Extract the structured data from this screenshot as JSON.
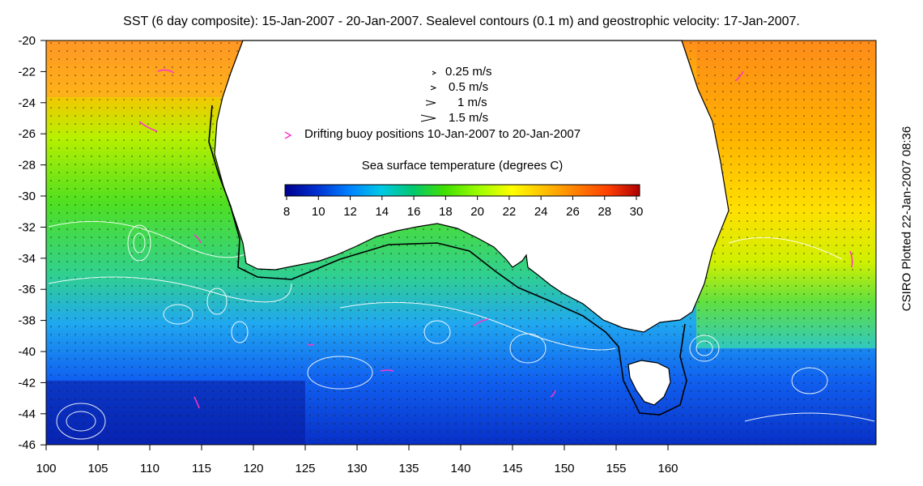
{
  "title": "SST (6 day composite): 15-Jan-2007 - 20-Jan-2007. Sealevel contours (0.1 m) and geostrophic velocity: 17-Jan-2007.",
  "credit": "CSIRO Plotted 22-Jan-2007 08:36",
  "axes": {
    "lon_ticks": [
      "100",
      "105",
      "110",
      "115",
      "120",
      "125",
      "130",
      "135",
      "140",
      "145",
      "150",
      "155",
      "160"
    ],
    "lat_ticks": [
      "-20",
      "-22",
      "-24",
      "-26",
      "-28",
      "-30",
      "-32",
      "-34",
      "-36",
      "-38",
      "-40",
      "-42",
      "-44",
      "-46"
    ]
  },
  "legend": {
    "velocity": [
      {
        "label": "0.25 m/s",
        "speed": 0.25
      },
      {
        "label": "0.5 m/s",
        "speed": 0.5
      },
      {
        "label": "1 m/s",
        "speed": 1
      },
      {
        "label": "1.5 m/s",
        "speed": 1.5
      }
    ],
    "drifter": {
      "label": "Drifting buoy positions 10-Jan-2007 to 20-Jan-2007",
      "color": "#ff33cc"
    }
  },
  "colorbar": {
    "label": "Sea surface temperature (degrees C)",
    "ticks": [
      "8",
      "10",
      "12",
      "14",
      "16",
      "18",
      "20",
      "22",
      "24",
      "26",
      "28",
      "30"
    ],
    "colors": [
      "#00008f",
      "#0030d0",
      "#0080ff",
      "#00c8e8",
      "#00c870",
      "#40e000",
      "#a0ff00",
      "#ffff00",
      "#ffc000",
      "#ff8000",
      "#ff4000",
      "#b00000"
    ]
  },
  "colors": {
    "land": "#ffffff",
    "coast": "#000000",
    "contour": "#ffffff"
  }
}
